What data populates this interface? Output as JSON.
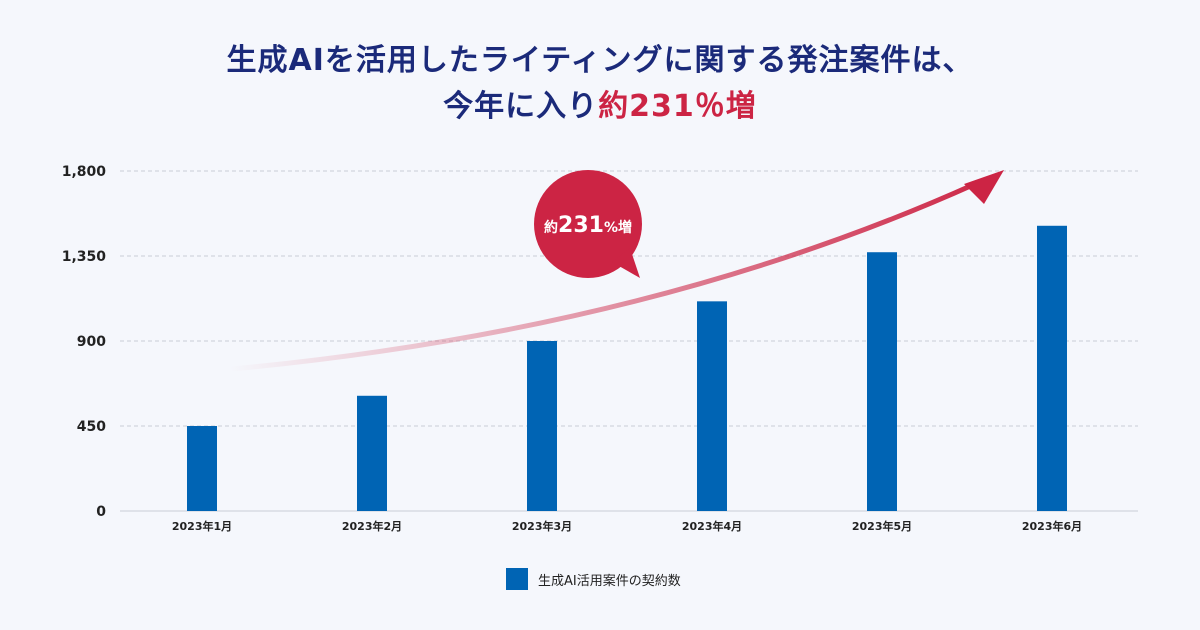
{
  "title": {
    "line1": "生成AIを活用したライティングに関する発注案件は、",
    "line2_prefix": "今年に入り",
    "line2_highlight": "約231％増"
  },
  "colors": {
    "bar": "#0064b4",
    "accent": "#cc2444",
    "title": "#1b2a7a",
    "grid": "#c9ccd6"
  },
  "chart_data": {
    "type": "bar",
    "categories": [
      "2023年1月",
      "2023年2月",
      "2023年3月",
      "2023年4月",
      "2023年5月",
      "2023年6月"
    ],
    "series": [
      {
        "name": "生成AI活用案件の契約数",
        "values": [
          450,
          610,
          900,
          1110,
          1370,
          1510
        ]
      }
    ],
    "ylim": [
      0,
      1800
    ],
    "yticks": [
      0,
      450,
      900,
      1350,
      1800
    ],
    "ytick_labels": [
      "0",
      "450",
      "900",
      "1,350",
      "1,800"
    ],
    "grid": true,
    "legend_position": "bottom-center",
    "annotation": {
      "text_prefix": "約",
      "text_number": "231",
      "text_suffix": "%増"
    }
  }
}
